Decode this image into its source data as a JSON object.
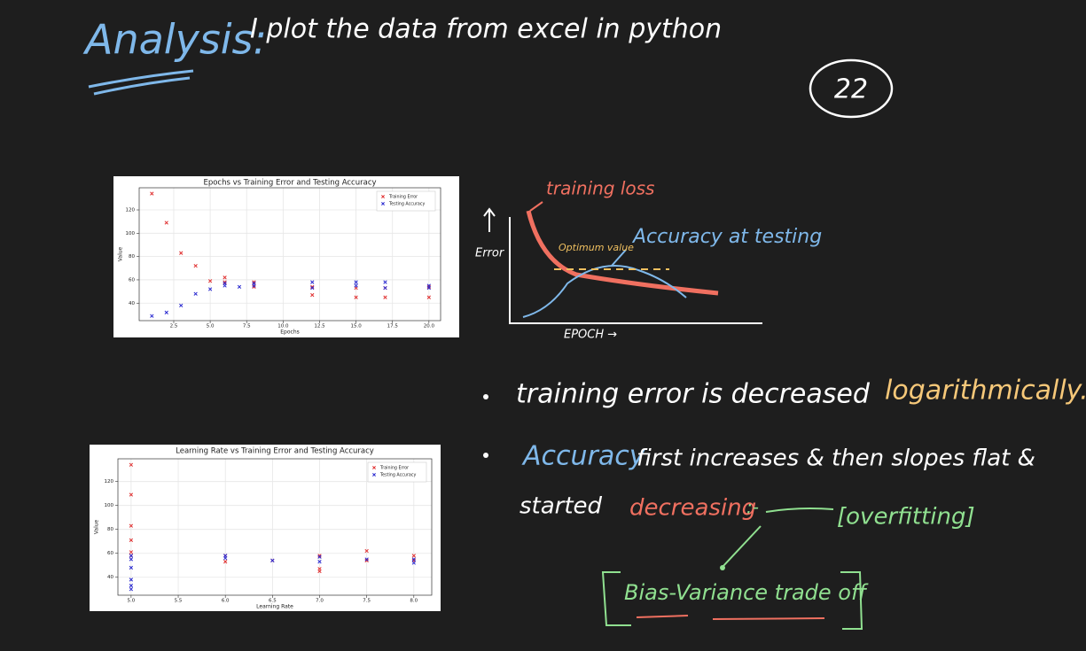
{
  "notes": {
    "heading": "Analysis:",
    "intro": "I plot the data from excel in python",
    "page_number": "22",
    "sketch": {
      "curve_1": "training loss",
      "optimum": "Optimum value",
      "curve_2": "Accuracy at testing",
      "y_axis": "Error",
      "x_axis": "EPOCH →"
    },
    "bullet_1": {
      "text": "training error is decreased",
      "highlight": "logarithmically."
    },
    "bullet_2": {
      "highlight": "Accuracy",
      "text": "first increases & then slopes flat &",
      "text_2": "started",
      "highlight_2": "decreasing",
      "connector": ":-",
      "result": "[overfitting]"
    },
    "conclusion": "Bias-Variance trade off"
  },
  "chart_data": [
    {
      "type": "scatter",
      "title": "Epochs vs Training Error and Testing Accuracy",
      "x_label": "Epochs",
      "y_label": "Value",
      "xlim": [
        0.13,
        20.8
      ],
      "ylim": [
        25,
        139
      ],
      "xticks": [
        2.5,
        {
          "value": 5,
          "label": "5.0"
        },
        7.5,
        {
          "value": 10,
          "label": "10.0"
        },
        12.5,
        {
          "value": 15,
          "label": "15.0"
        },
        17.5,
        {
          "value": 20,
          "label": "20.0"
        }
      ],
      "yticks": [
        40,
        60,
        80,
        100,
        120
      ],
      "grid": true,
      "legend": "upper right",
      "marker": "x",
      "series": [
        {
          "name": "Training Error",
          "color": "#e03030",
          "x": [
            1,
            2,
            3,
            4,
            5,
            6,
            6,
            8,
            8,
            12,
            12,
            15,
            15,
            17,
            17,
            20,
            20
          ],
          "values": [
            134,
            109,
            83,
            72,
            59,
            62,
            58,
            58,
            54,
            47,
            54,
            45,
            53,
            45,
            53,
            45,
            54
          ]
        },
        {
          "name": "Testing Accuracy",
          "color": "#2a2ad0",
          "x": [
            1,
            2,
            3,
            4,
            5,
            6,
            6,
            7,
            8,
            8,
            12,
            12,
            15,
            15,
            17,
            17,
            20,
            20
          ],
          "values": [
            29,
            32,
            38,
            48,
            52,
            57,
            55,
            54,
            57,
            55,
            58,
            53,
            58,
            55,
            58,
            53,
            55,
            53
          ]
        }
      ]
    },
    {
      "type": "scatter",
      "title": "Learning Rate vs Training Error and Testing Accuracy",
      "x_label": "Learning Rate",
      "y_label": "Value",
      "xlim": [
        4.86,
        8.19
      ],
      "ylim": [
        25,
        139
      ],
      "xticks": [
        {
          "value": 5,
          "label": "5.0"
        },
        5.5,
        {
          "value": 6,
          "label": "6.0"
        },
        6.5,
        {
          "value": 7,
          "label": "7.0"
        },
        7.5,
        {
          "value": 8,
          "label": "8.0"
        }
      ],
      "yticks": [
        40,
        60,
        80,
        100,
        120
      ],
      "grid": true,
      "legend": "upper right",
      "marker": "x",
      "series": [
        {
          "name": "Training Error",
          "color": "#e03030",
          "x": [
            5,
            5,
            5,
            5,
            5,
            5,
            6,
            6,
            6.5,
            7,
            7,
            7,
            7.5,
            7.5,
            8,
            8
          ],
          "values": [
            134,
            109,
            83,
            71,
            61,
            58,
            58,
            53,
            54,
            47,
            45,
            58,
            62,
            54,
            58,
            54
          ]
        },
        {
          "name": "Testing Accuracy",
          "color": "#2a2ad0",
          "x": [
            5,
            5,
            5,
            5,
            5,
            5,
            6,
            6,
            6.5,
            7,
            7,
            7.5,
            8,
            8
          ],
          "values": [
            30,
            33,
            38,
            48,
            55,
            58,
            56,
            58,
            54,
            57,
            53,
            55,
            52,
            55
          ]
        }
      ]
    }
  ]
}
